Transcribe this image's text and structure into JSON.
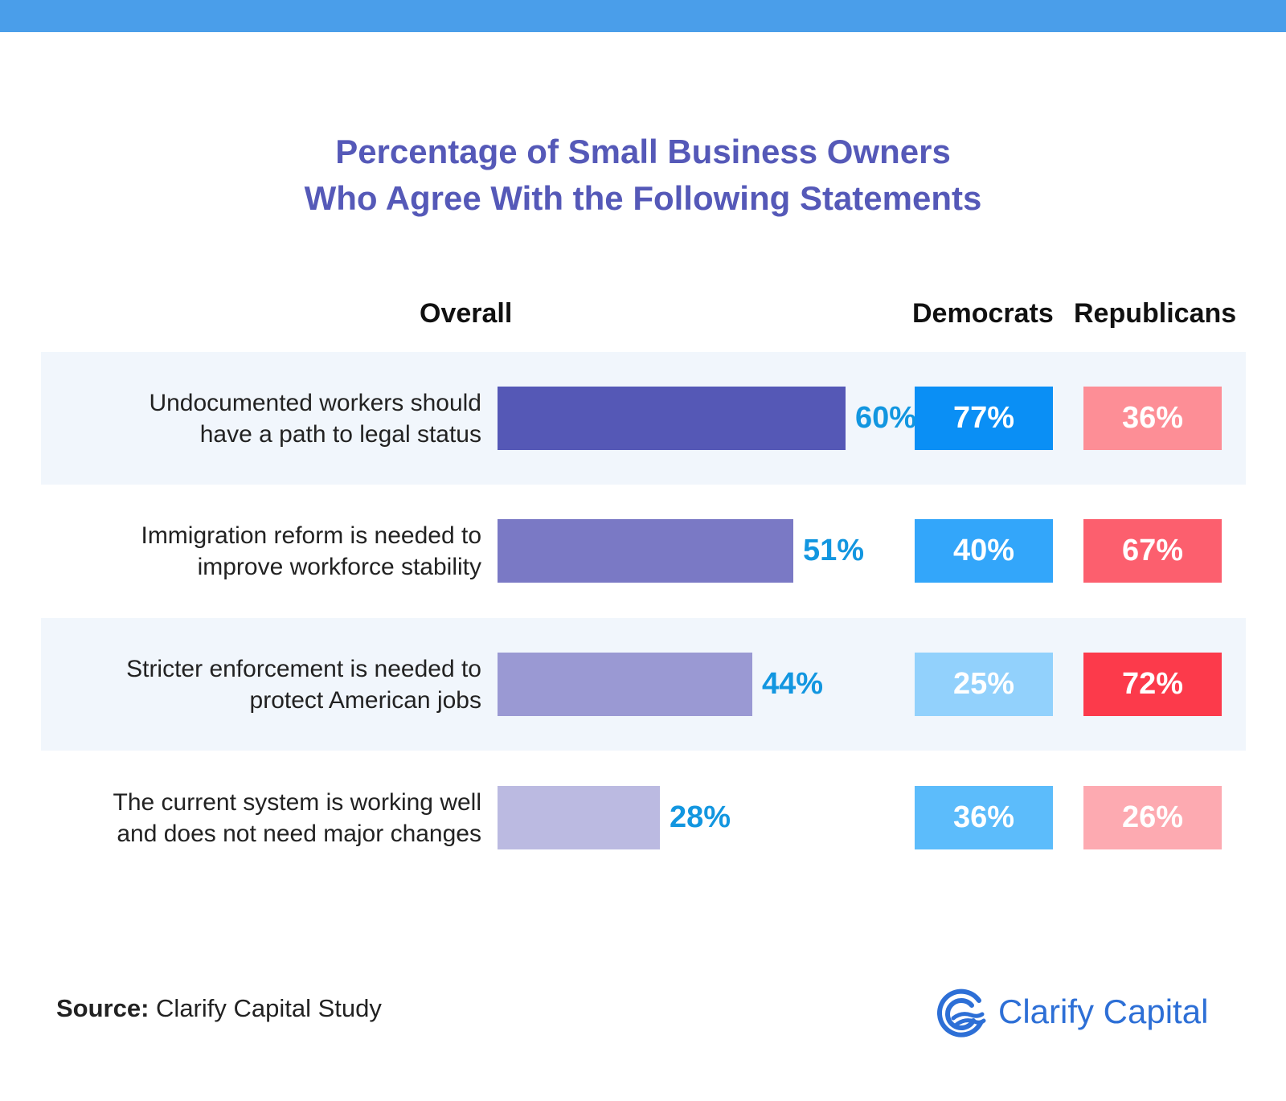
{
  "title_line1": "Percentage of Small Business Owners",
  "title_line2": "Who Agree With the Following Statements",
  "columns": {
    "overall": "Overall",
    "democrats": "Democrats",
    "republicans": "Republicans"
  },
  "chart_data": {
    "type": "bar",
    "orientation": "horizontal",
    "title": "Percentage of Small Business Owners Who Agree With the Following Statements",
    "categories": [
      "Undocumented workers should have a path to legal status",
      "Immigration reform is needed to improve workforce stability",
      "Stricter enforcement is needed to protect American jobs",
      "The current system is working well and does not need major changes"
    ],
    "series": [
      {
        "name": "Overall",
        "values": [
          60,
          51,
          44,
          28
        ],
        "labels": [
          "60%",
          "51%",
          "44%",
          "28%"
        ]
      },
      {
        "name": "Democrats",
        "values": [
          77,
          40,
          25,
          36
        ],
        "labels": [
          "77%",
          "40%",
          "25%",
          "36%"
        ]
      },
      {
        "name": "Republicans",
        "values": [
          36,
          67,
          72,
          26
        ],
        "labels": [
          "36%",
          "67%",
          "72%",
          "26%"
        ]
      }
    ],
    "xlim": [
      0,
      100
    ],
    "grid": false,
    "legend": "column headers"
  },
  "rows": [
    {
      "lines": [
        "Undocumented workers should",
        "have a path to legal status"
      ],
      "overall_label": "60%",
      "dem_label": "77%",
      "rep_label": "36%",
      "overall_color": "#5558b6",
      "dem_color": "#0a8ff5",
      "rep_color": "#fd8e96"
    },
    {
      "lines": [
        "Immigration reform is needed to",
        "improve workforce stability"
      ],
      "overall_label": "51%",
      "dem_label": "40%",
      "rep_label": "67%",
      "overall_color": "#7a79c5",
      "dem_color": "#33a6fa",
      "rep_color": "#fc5f6e"
    },
    {
      "lines": [
        "Stricter enforcement is needed to",
        "protect American jobs"
      ],
      "overall_label": "44%",
      "dem_label": "25%",
      "rep_label": "72%",
      "overall_color": "#9a99d3",
      "dem_color": "#92d1fc",
      "rep_color": "#fc3a4b"
    },
    {
      "lines": [
        "The current system is working well",
        "and does not need major changes"
      ],
      "overall_label": "28%",
      "dem_label": "36%",
      "rep_label": "26%",
      "overall_color": "#bbbae1",
      "dem_color": "#5cbcfb",
      "rep_color": "#fdaab1"
    }
  ],
  "source_label": "Source:",
  "source_text": "Clarify Capital Study",
  "logo_text": "Clarify Capital",
  "colors": {
    "top_bar": "#4a9eea",
    "title": "#5559b8",
    "value_label": "#1296e0",
    "row_shade": "#f1f6fc",
    "logo": "#2d6fd6"
  }
}
